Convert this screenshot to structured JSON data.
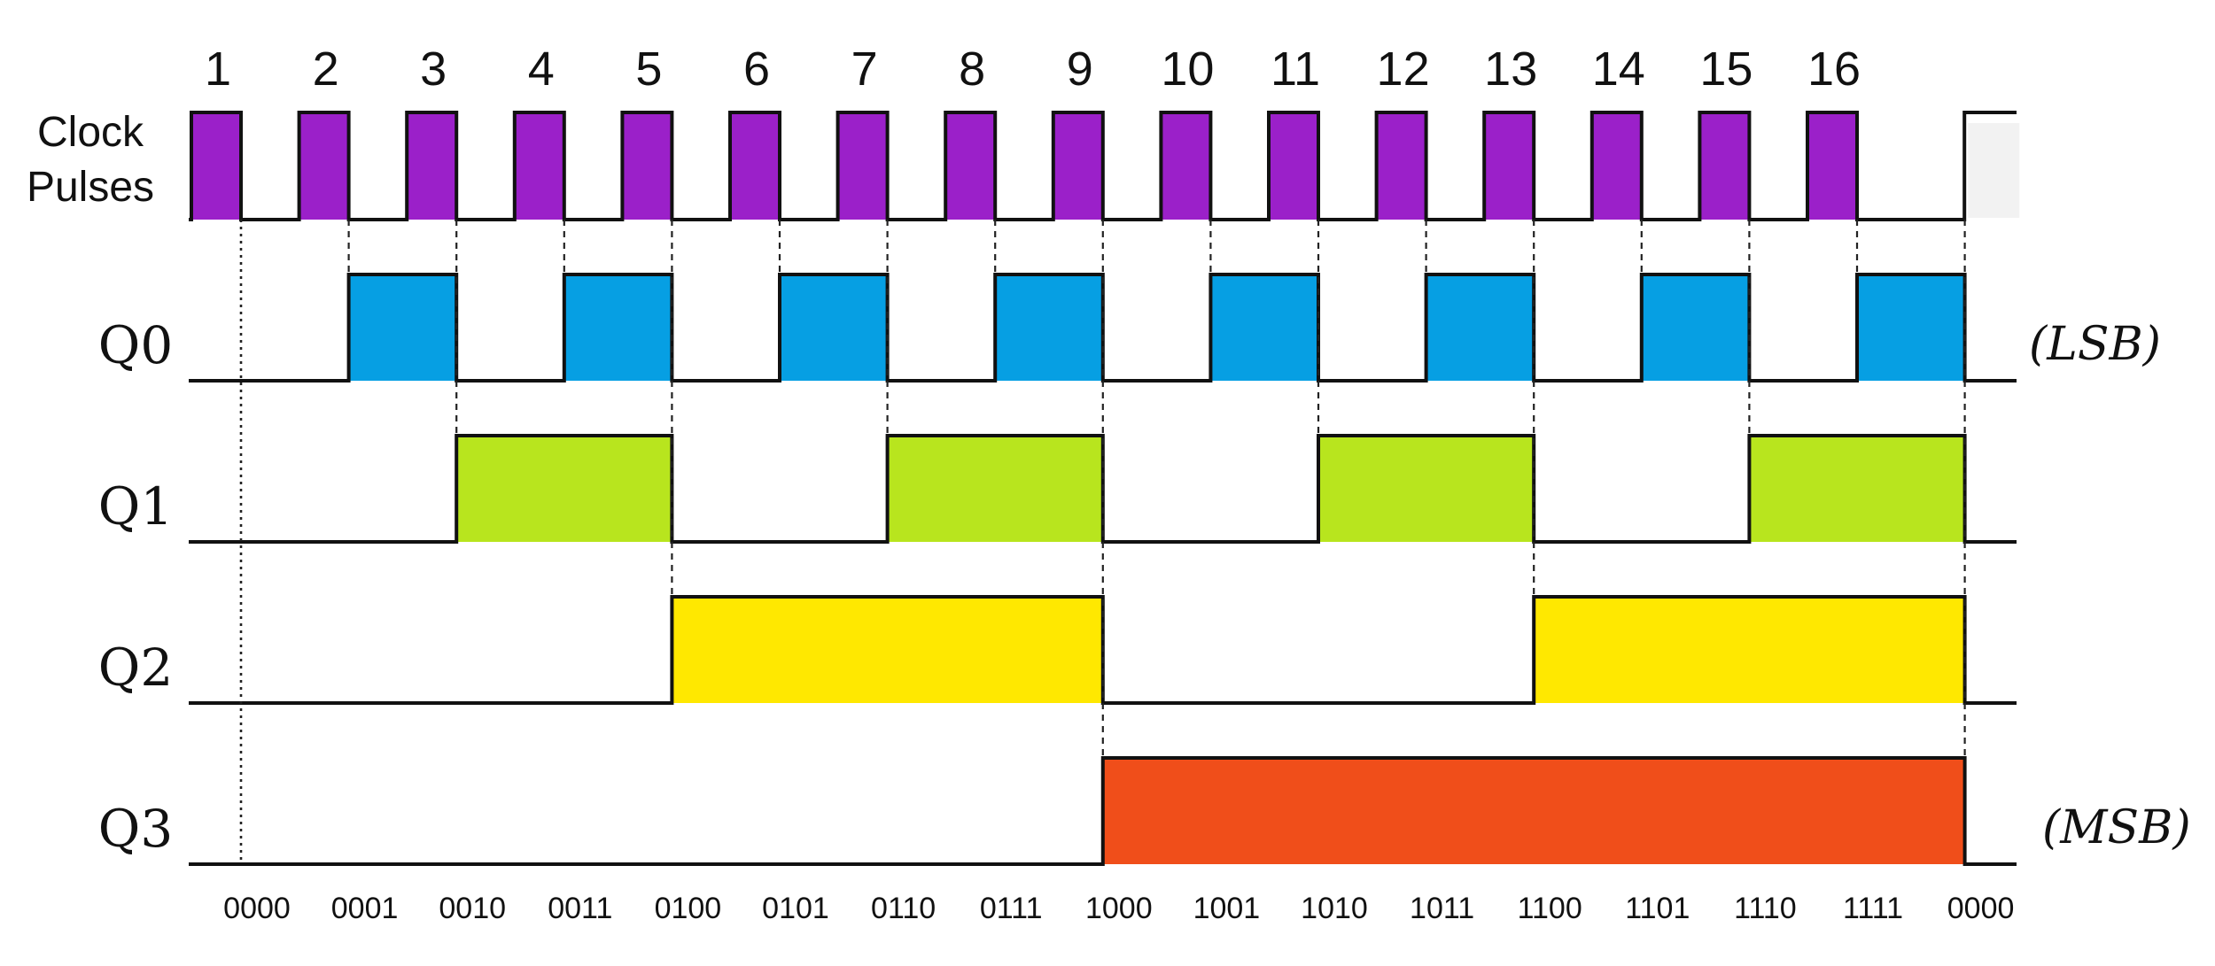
{
  "clock": {
    "label_lines": [
      "Clock",
      "Pulses"
    ],
    "color": "#9b20c9",
    "pulses": [
      "1",
      "2",
      "3",
      "4",
      "5",
      "6",
      "7",
      "8",
      "9",
      "10",
      "11",
      "12",
      "13",
      "14",
      "15",
      "16"
    ]
  },
  "signals": [
    {
      "name": "Q0",
      "color": "#069fe3",
      "period": 2,
      "tag": "(LSB)"
    },
    {
      "name": "Q1",
      "color": "#b8e51e",
      "period": 4,
      "tag": ""
    },
    {
      "name": "Q2",
      "color": "#ffe800",
      "period": 8,
      "tag": ""
    },
    {
      "name": "Q3",
      "color": "#f04e1a",
      "period": 16,
      "tag": "(MSB)"
    }
  ],
  "states": [
    "0000",
    "0001",
    "0010",
    "0011",
    "0100",
    "0101",
    "0110",
    "0111",
    "1000",
    "1001",
    "1010",
    "1011",
    "1100",
    "1101",
    "1110",
    "1111",
    "0000"
  ]
}
